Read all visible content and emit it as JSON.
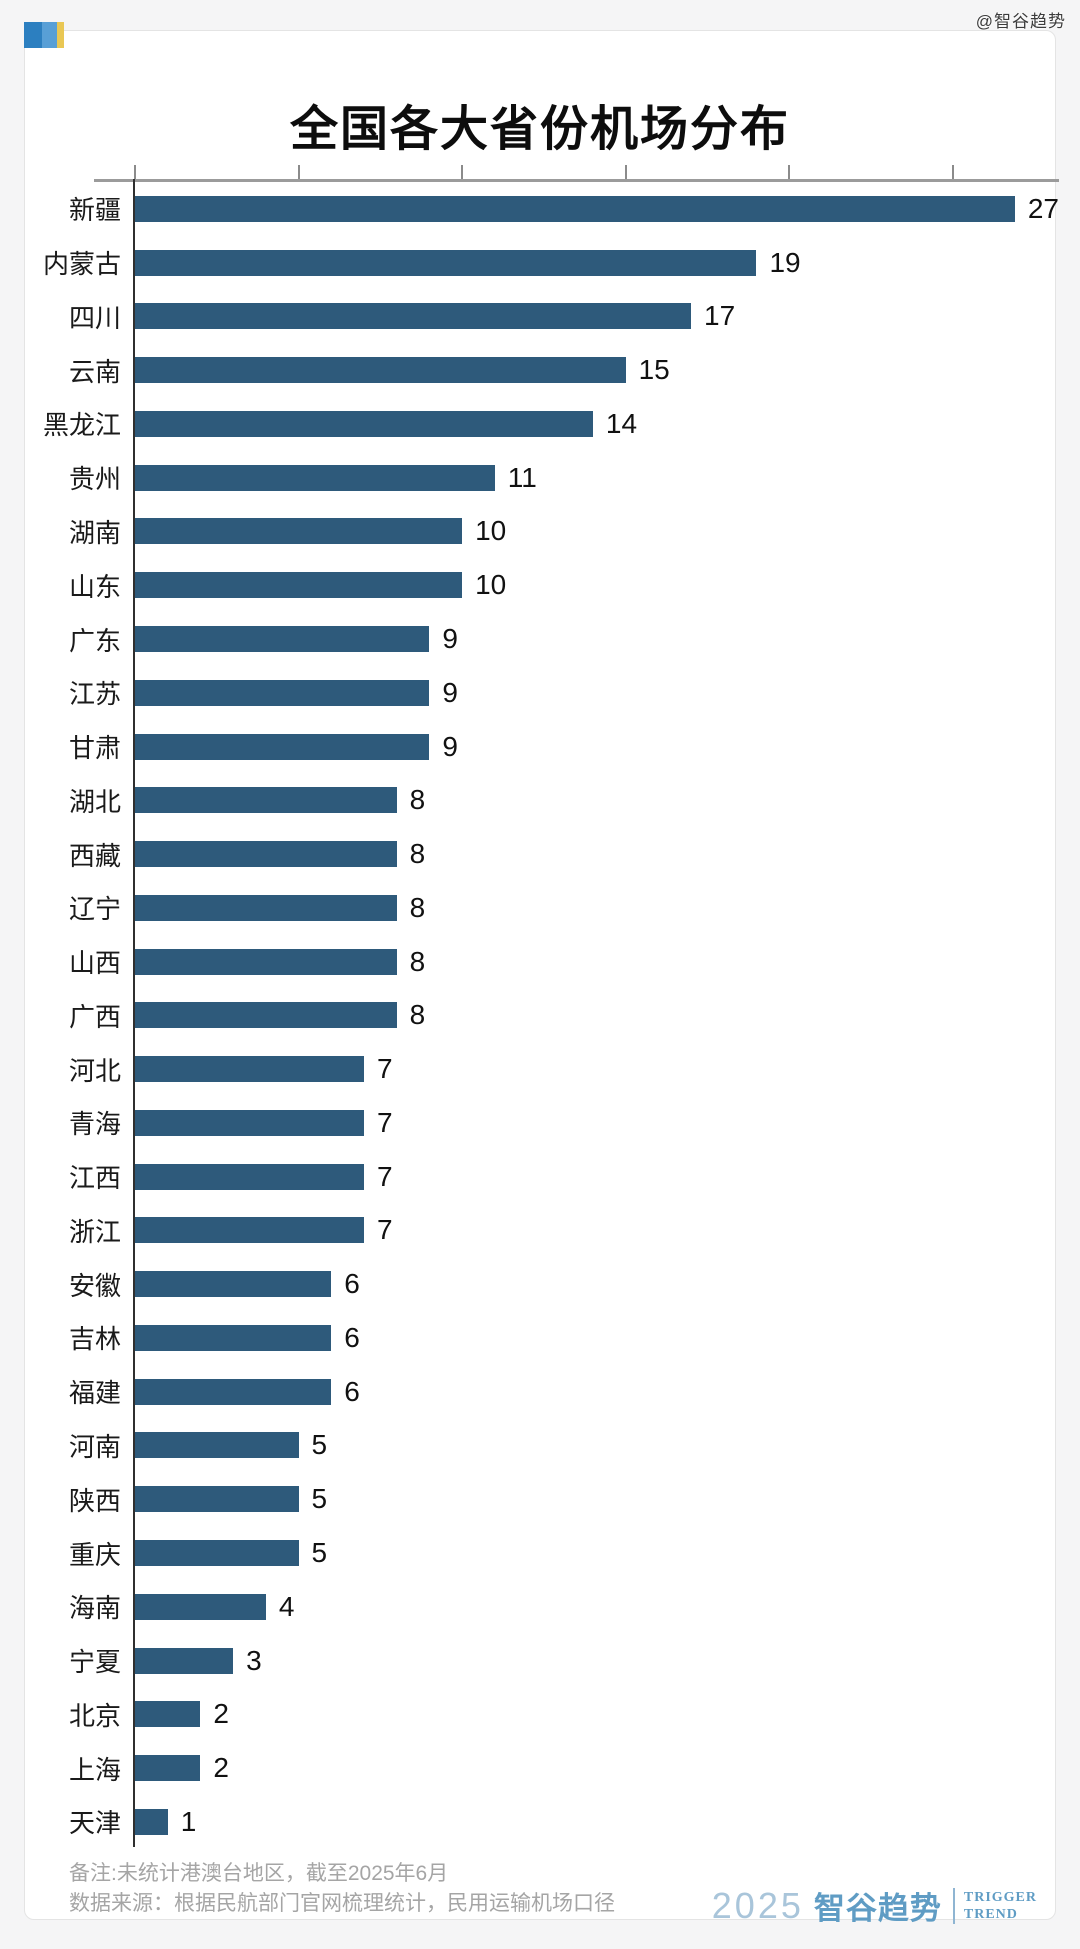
{
  "watermark": "@智谷趋势",
  "header": {
    "title": "全国各大省份机场分布"
  },
  "chart_data": {
    "type": "bar",
    "orientation": "horizontal",
    "title": "全国各大省份机场分布",
    "categories": [
      "新疆",
      "内蒙古",
      "四川",
      "云南",
      "黑龙江",
      "贵州",
      "湖南",
      "山东",
      "广东",
      "江苏",
      "甘肃",
      "湖北",
      "西藏",
      "辽宁",
      "山西",
      "广西",
      "河北",
      "青海",
      "江西",
      "浙江",
      "安徽",
      "吉林",
      "福建",
      "河南",
      "陕西",
      "重庆",
      "海南",
      "宁夏",
      "北京",
      "上海",
      "天津"
    ],
    "values": [
      27,
      19,
      17,
      15,
      14,
      11,
      10,
      10,
      9,
      9,
      9,
      8,
      8,
      8,
      8,
      8,
      7,
      7,
      7,
      7,
      6,
      6,
      6,
      5,
      5,
      5,
      4,
      3,
      2,
      2,
      1
    ],
    "xlim": [
      0,
      28.25
    ],
    "xticks": [
      0,
      5,
      10,
      15,
      20,
      25
    ],
    "xtick_labels_visible": false,
    "grid": false,
    "legend": null,
    "bar_color": "#2E5A7B",
    "value_label_color": "#111111",
    "category_label_color": "#1a1a1a"
  },
  "footer": {
    "note_line1": "备注:未统计港澳台地区，截至2025年6月",
    "note_line2": "数据来源：根据民航部门官网梳理统计，民用运输机场口径",
    "logo": {
      "year": "2025",
      "brand": "智谷趋势",
      "tagline_line1": "TRIGGER",
      "tagline_line2": "TREND"
    }
  },
  "brand_flag": {
    "colors": [
      "#2C7FC0",
      "#589FD6",
      "#E9C754"
    ]
  },
  "theme": {
    "page_bg": "#f5f5f6",
    "card_bg": "#ffffff",
    "card_border": "#e4e4e4",
    "axis_line_color": "#9b9b9b",
    "tick_color": "#8b8b8b",
    "y_axis_color": "#2f2f2f",
    "footer_text_color": "#a5a5a5",
    "logo_blue": "#5f9cc4",
    "logo_light_blue": "#a9c5da"
  }
}
